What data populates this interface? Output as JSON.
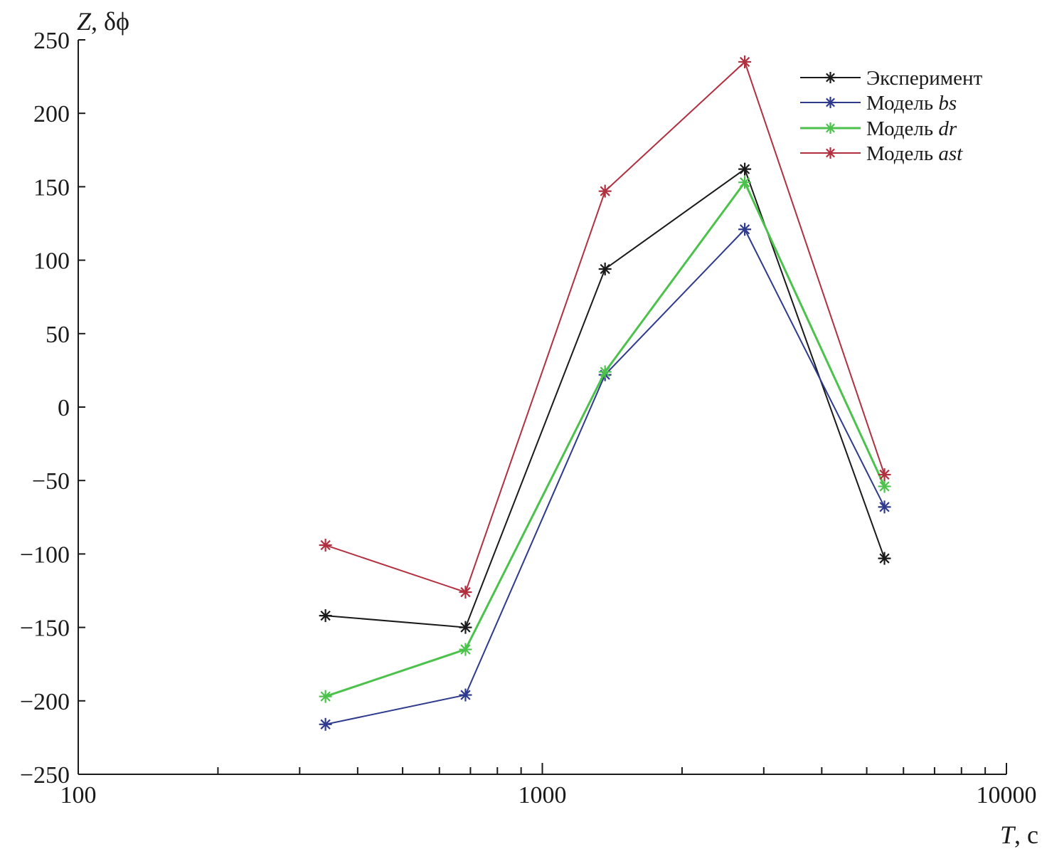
{
  "chart_data": {
    "type": "line",
    "title": "",
    "xlabel": "T, с",
    "xlabel_parts": {
      "var": "T",
      "unit": ", с"
    },
    "ylabel": "Z, δϕ",
    "ylabel_parts": {
      "var": "Z",
      "rest": ", δϕ"
    },
    "x_scale": "log",
    "xlim": [
      100,
      10000
    ],
    "ylim": [
      -250,
      250
    ],
    "x_ticks": [
      100,
      1000,
      10000
    ],
    "x_tick_labels": [
      "100",
      "1000",
      "10000"
    ],
    "y_ticks": [
      250,
      200,
      150,
      100,
      50,
      0,
      -50,
      -100,
      -150,
      -200,
      -250
    ],
    "y_tick_labels": [
      "250",
      "200",
      "150",
      "100",
      "50",
      "0",
      "−50",
      "−100",
      "−150",
      "−200",
      "−250"
    ],
    "grid": false,
    "legend_position": "top-right",
    "x": [
      341,
      683,
      1365,
      2730,
      5460
    ],
    "series": [
      {
        "name": "Эксперимент",
        "name_parts": {
          "base": "Эксперимент",
          "italic": ""
        },
        "color": "#1a1a1a",
        "marker": "asterisk",
        "values": [
          -142,
          -150,
          94,
          162,
          -103
        ]
      },
      {
        "name": "Модель bs",
        "name_parts": {
          "base": "Модель ",
          "italic": "bs"
        },
        "color": "#2e3a8c",
        "marker": "asterisk",
        "values": [
          -216,
          -196,
          22,
          121,
          -68
        ]
      },
      {
        "name": "Модель dr",
        "name_parts": {
          "base": "Модель ",
          "italic": "dr"
        },
        "color": "#4cc24c",
        "marker": "asterisk",
        "values": [
          -197,
          -165,
          24,
          153,
          -54
        ]
      },
      {
        "name": "Модель ast",
        "name_parts": {
          "base": "Модель ",
          "italic": "ast"
        },
        "color": "#b03040",
        "marker": "asterisk",
        "values": [
          -94,
          -126,
          147,
          235,
          -46
        ]
      }
    ]
  }
}
